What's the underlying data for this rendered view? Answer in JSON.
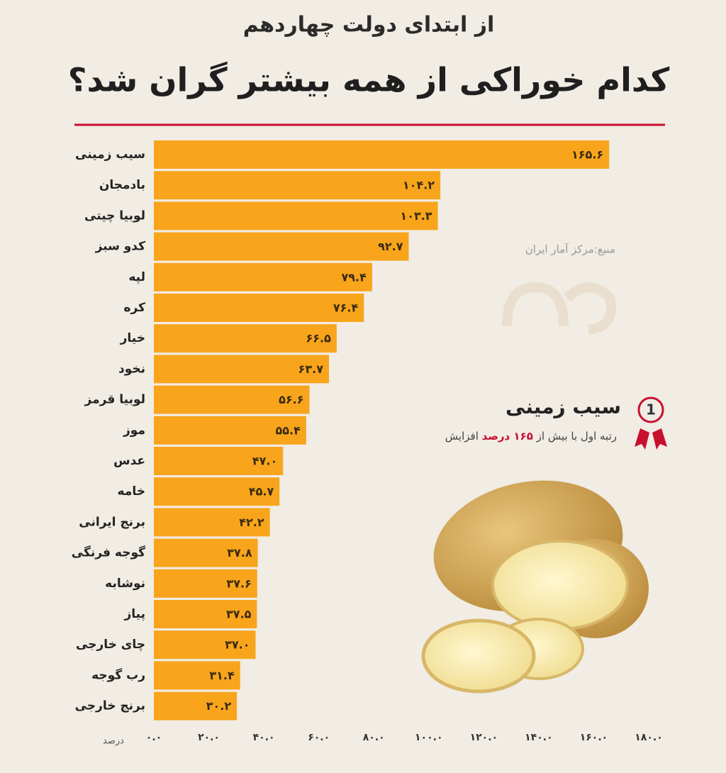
{
  "chart_data": {
    "type": "bar",
    "orientation": "horizontal",
    "supertitle": "از ابتدای دولت چهاردهم",
    "title": "کدام خوراکی از همه بیشتر گران شد؟",
    "categories": [
      "سیب زمینی",
      "بادمجان",
      "لوبیا چیتی",
      "کدو سبز",
      "لپه",
      "کره",
      "خیار",
      "نخود",
      "لوبیا قرمز",
      "موز",
      "عدس",
      "خامه",
      "برنج ایرانی",
      "گوجه فرنگی",
      "نوشابه",
      "پیاز",
      "چای خارجی",
      "رب گوجه",
      "برنج خارجی"
    ],
    "values": [
      165.6,
      104.2,
      103.3,
      92.7,
      79.4,
      76.4,
      66.5,
      63.7,
      56.6,
      55.4,
      47.0,
      45.7,
      42.2,
      37.8,
      37.6,
      37.5,
      37.0,
      31.4,
      30.2
    ],
    "value_labels": [
      "۱۶۵.۶",
      "۱۰۴.۲",
      "۱۰۳.۳",
      "۹۲.۷",
      "۷۹.۴",
      "۷۶.۴",
      "۶۶.۵",
      "۶۳.۷",
      "۵۶.۶",
      "۵۵.۴",
      "۴۷.۰",
      "۴۵.۷",
      "۴۲.۲",
      "۳۷.۸",
      "۳۷.۶",
      "۳۷.۵",
      "۳۷.۰",
      "۳۱.۴",
      "۳۰.۲"
    ],
    "color": "#f8a51c",
    "xlim": [
      0,
      180
    ],
    "xticks": [
      {
        "value": 0,
        "label": "۰.۰"
      },
      {
        "value": 20,
        "label": "۲۰.۰"
      },
      {
        "value": 40,
        "label": "۴۰.۰"
      },
      {
        "value": 60,
        "label": "۶۰.۰"
      },
      {
        "value": 80,
        "label": "۸۰.۰"
      },
      {
        "value": 100,
        "label": "۱۰۰.۰"
      },
      {
        "value": 120,
        "label": "۱۲۰.۰"
      },
      {
        "value": 140,
        "label": "۱۴۰.۰"
      },
      {
        "value": 160,
        "label": "۱۶۰.۰"
      },
      {
        "value": 180,
        "label": "۱۸۰.۰"
      }
    ],
    "x_label": "درصد",
    "grid": false,
    "source": "منبع:مرکز آمار ایران",
    "highlight": {
      "rank": "1",
      "name": "سیب زمینی",
      "note": [
        "رتبه اول با بیش از",
        "۱۶۵ درصد",
        "افزایش"
      ]
    }
  }
}
